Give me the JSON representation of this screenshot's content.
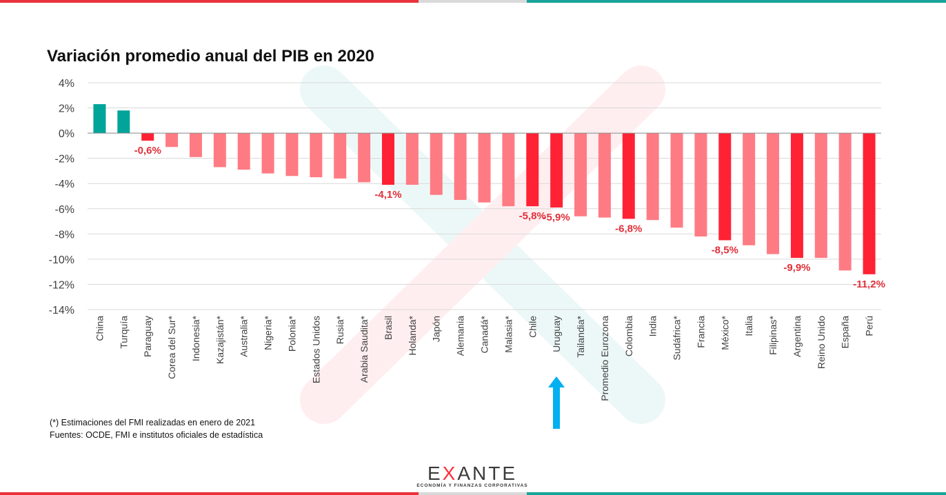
{
  "title": "Variación promedio anual del PIB en 2020",
  "colors": {
    "positive": "#00a499",
    "highlight": "#ff2234",
    "default": "#ff7b84",
    "arrow": "#00b0f0",
    "label": "#e0303a"
  },
  "chart_data": {
    "type": "bar",
    "title": "Variación promedio anual del PIB en 2020",
    "xlabel": "",
    "ylabel": "",
    "ylim": [
      -14,
      4
    ],
    "yticks": [
      4,
      2,
      0,
      -2,
      -4,
      -6,
      -8,
      -10,
      -12,
      -14
    ],
    "ytick_labels": [
      "4%",
      "2%",
      "0%",
      "-2%",
      "-4%",
      "-6%",
      "-8%",
      "-10%",
      "-12%",
      "-14%"
    ],
    "grid": true,
    "legend": "none",
    "categories": [
      "China",
      "Turquía",
      "Paraguay",
      "Corea del Sur*",
      "Indonesia*",
      "Kazajistán*",
      "Australia*",
      "Nigeria*",
      "Polonia*",
      "Estados Unidos",
      "Rusia*",
      "Arabia Saudita*",
      "Brasil",
      "Holanda*",
      "Japón",
      "Alemania",
      "Canadá*",
      "Malasia*",
      "Chile",
      "Uruguay",
      "Tailandia*",
      "Promedio Eurozona",
      "Colombia",
      "India",
      "Sudáfrica*",
      "Francia",
      "México*",
      "Italia",
      "Filipinas*",
      "Argentina",
      "Reino Unido",
      "España",
      "Perú"
    ],
    "values": [
      2.3,
      1.8,
      -0.6,
      -1.1,
      -1.9,
      -2.7,
      -2.9,
      -3.2,
      -3.4,
      -3.5,
      -3.6,
      -3.9,
      -4.1,
      -4.1,
      -4.9,
      -5.3,
      -5.5,
      -5.8,
      -5.8,
      -5.9,
      -6.6,
      -6.7,
      -6.8,
      -6.9,
      -7.5,
      -8.2,
      -8.5,
      -8.9,
      -9.6,
      -9.9,
      -9.9,
      -10.9,
      -11.2
    ],
    "bar_style": [
      "positive",
      "positive",
      "highlight",
      "default",
      "default",
      "default",
      "default",
      "default",
      "default",
      "default",
      "default",
      "default",
      "highlight",
      "default",
      "default",
      "default",
      "default",
      "default",
      "highlight",
      "highlight",
      "default",
      "default",
      "highlight",
      "default",
      "default",
      "default",
      "highlight",
      "default",
      "default",
      "highlight",
      "default",
      "default",
      "highlight"
    ],
    "data_labels": [
      "",
      "",
      "-0,6%",
      "",
      "",
      "",
      "",
      "",
      "",
      "",
      "",
      "",
      "-4,1%",
      "",
      "",
      "",
      "",
      "",
      "-5,8%",
      "-5,9%",
      "",
      "",
      "-6,8%",
      "",
      "",
      "",
      "-8,5%",
      "",
      "",
      "-9,9%",
      "",
      "",
      "-11,2%"
    ],
    "highlight_marker": "Uruguay"
  },
  "notes": [
    "(*) Estimaciones del FMI realizadas en enero de 2021",
    "Fuentes: OCDE, FMI e institutos oficiales de estadística"
  ],
  "logo": {
    "word": "EXANTE",
    "tagline": "ECONOMÍA Y FINANZAS CORPORATIVAS"
  },
  "arrow_icon": "up-arrow-icon"
}
